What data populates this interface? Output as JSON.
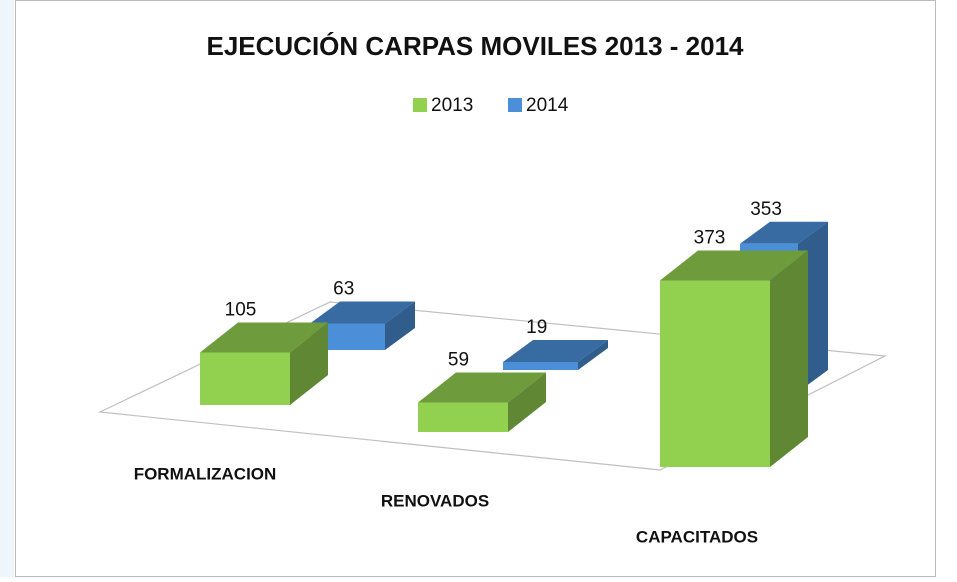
{
  "chart_data": {
    "type": "bar3d",
    "title": "EJECUCIÓN CARPAS MOVILES 2013 - 2014",
    "categories": [
      "FORMALIZACION",
      "RENOVADOS",
      "CAPACITADOS"
    ],
    "series": [
      {
        "name": "2013",
        "color": "#92d050",
        "values": [
          105,
          59,
          373
        ]
      },
      {
        "name": "2014",
        "color": "#4a8fd8",
        "values": [
          63,
          19,
          353
        ]
      }
    ]
  }
}
